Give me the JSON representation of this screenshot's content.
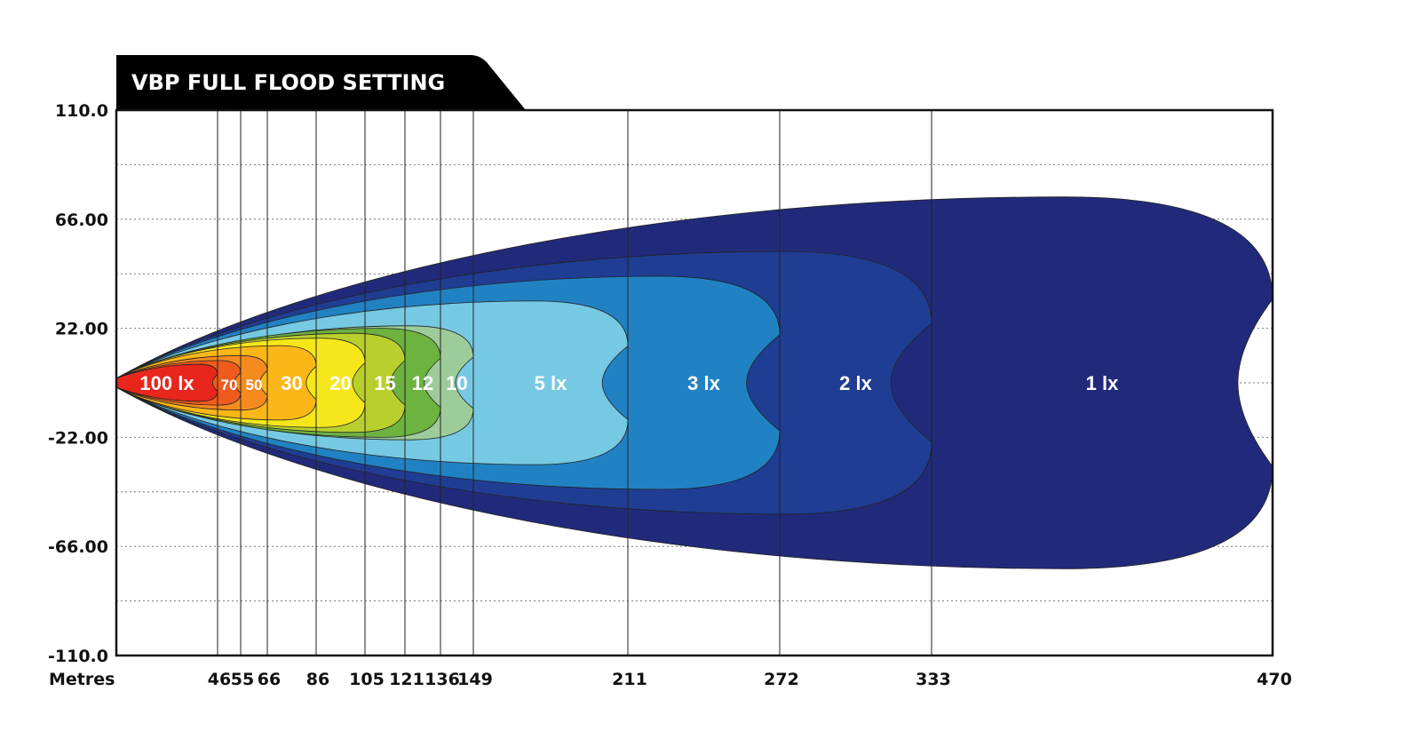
{
  "chart_data": {
    "type": "area",
    "title": "VBP FULL FLOOD SETTING",
    "xlabel": "Metres",
    "y_ticks": [
      "110.0",
      "66.00",
      "22.00",
      "-22.00",
      "-66.00",
      "-110.0"
    ],
    "ylim": [
      -110,
      110
    ],
    "x_ticks": [
      "46",
      "55",
      "66",
      "86",
      "105",
      "121",
      "136",
      "149",
      "211",
      "272",
      "333",
      "470"
    ],
    "grid": "horizontal dotted, vertical lines at distance ticks",
    "contours": [
      {
        "label": "1 lx",
        "lux": 1,
        "distance": 470,
        "half_width": 75,
        "color": "#212a7a"
      },
      {
        "label": "2 lx",
        "lux": 2,
        "distance": 333,
        "half_width": 53,
        "color": "#1f3d93"
      },
      {
        "label": "3 lx",
        "lux": 3,
        "distance": 272,
        "half_width": 43,
        "color": "#2182c3"
      },
      {
        "label": "5 lx",
        "lux": 5,
        "distance": 211,
        "half_width": 33,
        "color": "#76c9e3"
      },
      {
        "label": "10",
        "lux": 10,
        "distance": 149,
        "half_width": 23,
        "color": "#9dcc9b"
      },
      {
        "label": "12",
        "lux": 12,
        "distance": 136,
        "half_width": 22,
        "color": "#6cb33f"
      },
      {
        "label": "15",
        "lux": 15,
        "distance": 121,
        "half_width": 20,
        "color": "#b9cf2d"
      },
      {
        "label": "20",
        "lux": 20,
        "distance": 105,
        "half_width": 18,
        "color": "#f6e71b"
      },
      {
        "label": "30",
        "lux": 30,
        "distance": 86,
        "half_width": 15,
        "color": "#fbb617"
      },
      {
        "label": "50",
        "lux": 50,
        "distance": 66,
        "half_width": 11,
        "color": "#f58a1f"
      },
      {
        "label": "70",
        "lux": 70,
        "distance": 55,
        "half_width": 9,
        "color": "#ee5b1d"
      },
      {
        "label": "100 lx",
        "lux": 100,
        "distance": 46,
        "half_width": 7.5,
        "color": "#e8261c"
      }
    ]
  }
}
